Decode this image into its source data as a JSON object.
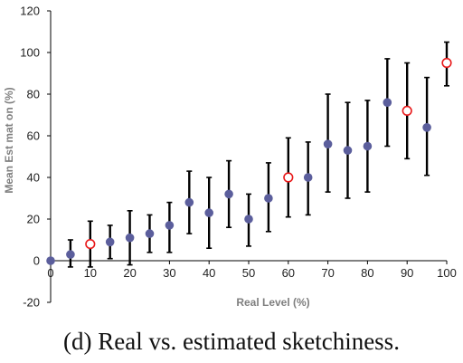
{
  "caption": "(d) Real vs. estimated sketchiness.",
  "chart_data": {
    "type": "scatter",
    "title": "",
    "xlabel": "Real Level (%)",
    "ylabel": "Mean Est mat on (%)",
    "xlim": [
      0,
      100
    ],
    "ylim": [
      -20,
      120
    ],
    "xticks": [
      0,
      10,
      20,
      30,
      40,
      50,
      60,
      70,
      80,
      90,
      100
    ],
    "yticks": [
      -20,
      0,
      20,
      40,
      60,
      80,
      100,
      120
    ],
    "grid": false,
    "marker_fill": "#5b5e9c",
    "highlight_edge": "#e8191a",
    "errorbar_color": "#000000",
    "points": [
      {
        "x": 0,
        "y": 0,
        "err_low": 0,
        "err_high": 0,
        "highlight": false
      },
      {
        "x": 5,
        "y": 3,
        "err_low": -3,
        "err_high": 10,
        "highlight": false
      },
      {
        "x": 10,
        "y": 8,
        "err_low": -3,
        "err_high": 19,
        "highlight": true
      },
      {
        "x": 15,
        "y": 9,
        "err_low": 1,
        "err_high": 17,
        "highlight": false
      },
      {
        "x": 20,
        "y": 11,
        "err_low": -2,
        "err_high": 24,
        "highlight": false
      },
      {
        "x": 25,
        "y": 13,
        "err_low": 4,
        "err_high": 22,
        "highlight": false
      },
      {
        "x": 30,
        "y": 17,
        "err_low": 4,
        "err_high": 28,
        "highlight": false
      },
      {
        "x": 35,
        "y": 28,
        "err_low": 13,
        "err_high": 43,
        "highlight": false
      },
      {
        "x": 40,
        "y": 23,
        "err_low": 6,
        "err_high": 40,
        "highlight": false
      },
      {
        "x": 45,
        "y": 32,
        "err_low": 16,
        "err_high": 48,
        "highlight": false
      },
      {
        "x": 50,
        "y": 20,
        "err_low": 7,
        "err_high": 32,
        "highlight": false
      },
      {
        "x": 55,
        "y": 30,
        "err_low": 14,
        "err_high": 47,
        "highlight": false
      },
      {
        "x": 60,
        "y": 40,
        "err_low": 21,
        "err_high": 59,
        "highlight": true
      },
      {
        "x": 65,
        "y": 40,
        "err_low": 22,
        "err_high": 57,
        "highlight": false
      },
      {
        "x": 70,
        "y": 56,
        "err_low": 33,
        "err_high": 80,
        "highlight": false
      },
      {
        "x": 75,
        "y": 53,
        "err_low": 30,
        "err_high": 76,
        "highlight": false
      },
      {
        "x": 80,
        "y": 55,
        "err_low": 33,
        "err_high": 77,
        "highlight": false
      },
      {
        "x": 85,
        "y": 76,
        "err_low": 55,
        "err_high": 97,
        "highlight": false
      },
      {
        "x": 90,
        "y": 72,
        "err_low": 49,
        "err_high": 95,
        "highlight": true
      },
      {
        "x": 95,
        "y": 64,
        "err_low": 41,
        "err_high": 88,
        "highlight": false
      },
      {
        "x": 100,
        "y": 95,
        "err_low": 84,
        "err_high": 105,
        "highlight": true
      }
    ]
  }
}
